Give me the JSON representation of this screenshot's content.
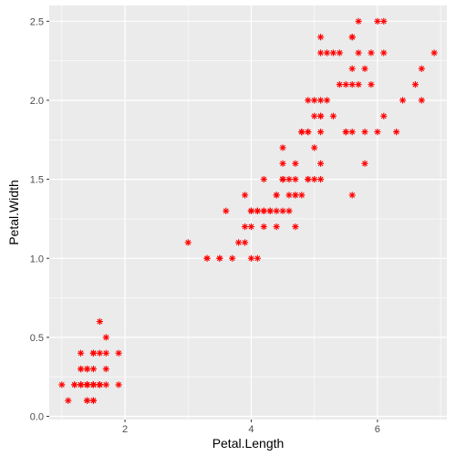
{
  "chart_data": {
    "type": "scatter",
    "title": "",
    "xlabel": "Petal.Length",
    "ylabel": "Petal.Width",
    "xlim": [
      0.8,
      7.1
    ],
    "ylim": [
      -0.02,
      2.6
    ],
    "x_ticks": [
      2,
      4,
      6
    ],
    "x_tick_labels": [
      "2",
      "4",
      "6"
    ],
    "y_ticks": [
      0.0,
      0.5,
      1.0,
      1.5,
      2.0,
      2.5
    ],
    "y_tick_labels": [
      "0.0",
      "0.5",
      "1.0",
      "1.5",
      "2.0",
      "2.5"
    ],
    "grid": true,
    "background": "#ebebeb",
    "gridline_color": "#ffffff",
    "marker": "asterisk",
    "marker_color": "#ff0000",
    "series": [
      {
        "points": [
          [
            1.4,
            0.2
          ],
          [
            1.4,
            0.2
          ],
          [
            1.3,
            0.2
          ],
          [
            1.5,
            0.2
          ],
          [
            1.4,
            0.2
          ],
          [
            1.7,
            0.4
          ],
          [
            1.4,
            0.3
          ],
          [
            1.5,
            0.2
          ],
          [
            1.4,
            0.2
          ],
          [
            1.5,
            0.1
          ],
          [
            1.5,
            0.2
          ],
          [
            1.6,
            0.2
          ],
          [
            1.4,
            0.1
          ],
          [
            1.1,
            0.1
          ],
          [
            1.2,
            0.2
          ],
          [
            1.5,
            0.4
          ],
          [
            1.3,
            0.4
          ],
          [
            1.4,
            0.3
          ],
          [
            1.7,
            0.3
          ],
          [
            1.5,
            0.3
          ],
          [
            1.7,
            0.2
          ],
          [
            1.5,
            0.4
          ],
          [
            1.0,
            0.2
          ],
          [
            1.7,
            0.5
          ],
          [
            1.9,
            0.2
          ],
          [
            1.6,
            0.2
          ],
          [
            1.6,
            0.4
          ],
          [
            1.5,
            0.2
          ],
          [
            1.4,
            0.2
          ],
          [
            1.6,
            0.2
          ],
          [
            1.6,
            0.2
          ],
          [
            1.5,
            0.4
          ],
          [
            1.5,
            0.1
          ],
          [
            1.4,
            0.2
          ],
          [
            1.5,
            0.2
          ],
          [
            1.2,
            0.2
          ],
          [
            1.3,
            0.2
          ],
          [
            1.4,
            0.1
          ],
          [
            1.3,
            0.2
          ],
          [
            1.5,
            0.2
          ],
          [
            1.3,
            0.3
          ],
          [
            1.3,
            0.3
          ],
          [
            1.3,
            0.2
          ],
          [
            1.6,
            0.6
          ],
          [
            1.9,
            0.4
          ],
          [
            1.4,
            0.3
          ],
          [
            1.6,
            0.2
          ],
          [
            1.4,
            0.2
          ],
          [
            1.5,
            0.2
          ],
          [
            1.4,
            0.2
          ],
          [
            4.7,
            1.4
          ],
          [
            4.5,
            1.5
          ],
          [
            4.9,
            1.5
          ],
          [
            4.0,
            1.3
          ],
          [
            4.6,
            1.5
          ],
          [
            4.5,
            1.3
          ],
          [
            4.7,
            1.6
          ],
          [
            3.3,
            1.0
          ],
          [
            4.6,
            1.3
          ],
          [
            3.9,
            1.4
          ],
          [
            3.5,
            1.0
          ],
          [
            4.2,
            1.5
          ],
          [
            4.0,
            1.0
          ],
          [
            4.7,
            1.4
          ],
          [
            3.6,
            1.3
          ],
          [
            4.4,
            1.4
          ],
          [
            4.5,
            1.5
          ],
          [
            4.1,
            1.0
          ],
          [
            4.5,
            1.5
          ],
          [
            3.9,
            1.1
          ],
          [
            4.8,
            1.8
          ],
          [
            4.0,
            1.3
          ],
          [
            4.9,
            1.5
          ],
          [
            4.7,
            1.2
          ],
          [
            4.3,
            1.3
          ],
          [
            4.4,
            1.4
          ],
          [
            4.8,
            1.4
          ],
          [
            5.0,
            1.7
          ],
          [
            4.5,
            1.5
          ],
          [
            3.5,
            1.0
          ],
          [
            3.8,
            1.1
          ],
          [
            3.7,
            1.0
          ],
          [
            3.9,
            1.2
          ],
          [
            5.1,
            1.6
          ],
          [
            4.5,
            1.5
          ],
          [
            4.5,
            1.6
          ],
          [
            4.7,
            1.5
          ],
          [
            4.4,
            1.3
          ],
          [
            4.1,
            1.3
          ],
          [
            4.0,
            1.3
          ],
          [
            4.4,
            1.2
          ],
          [
            4.6,
            1.4
          ],
          [
            4.0,
            1.2
          ],
          [
            3.3,
            1.0
          ],
          [
            4.2,
            1.3
          ],
          [
            4.2,
            1.2
          ],
          [
            4.2,
            1.3
          ],
          [
            4.3,
            1.3
          ],
          [
            3.0,
            1.1
          ],
          [
            4.1,
            1.3
          ],
          [
            6.0,
            2.5
          ],
          [
            5.1,
            1.9
          ],
          [
            5.9,
            2.1
          ],
          [
            5.6,
            1.8
          ],
          [
            5.8,
            2.2
          ],
          [
            6.6,
            2.1
          ],
          [
            4.5,
            1.7
          ],
          [
            6.3,
            1.8
          ],
          [
            5.8,
            1.8
          ],
          [
            6.1,
            2.5
          ],
          [
            5.1,
            2.0
          ],
          [
            5.3,
            1.9
          ],
          [
            5.5,
            2.1
          ],
          [
            5.0,
            2.0
          ],
          [
            5.1,
            2.4
          ],
          [
            5.3,
            2.3
          ],
          [
            5.5,
            1.8
          ],
          [
            6.7,
            2.2
          ],
          [
            6.9,
            2.3
          ],
          [
            5.0,
            1.5
          ],
          [
            5.7,
            2.3
          ],
          [
            4.9,
            2.0
          ],
          [
            6.7,
            2.0
          ],
          [
            4.9,
            1.8
          ],
          [
            5.7,
            2.1
          ],
          [
            6.0,
            1.8
          ],
          [
            4.8,
            1.8
          ],
          [
            4.9,
            1.8
          ],
          [
            5.6,
            2.1
          ],
          [
            5.8,
            1.6
          ],
          [
            6.1,
            1.9
          ],
          [
            6.4,
            2.0
          ],
          [
            5.6,
            2.2
          ],
          [
            5.1,
            1.5
          ],
          [
            5.6,
            1.4
          ],
          [
            6.1,
            2.3
          ],
          [
            5.6,
            2.4
          ],
          [
            5.5,
            1.8
          ],
          [
            4.8,
            1.8
          ],
          [
            5.4,
            2.1
          ],
          [
            5.6,
            2.4
          ],
          [
            5.1,
            2.3
          ],
          [
            5.1,
            1.9
          ],
          [
            5.9,
            2.3
          ],
          [
            5.7,
            2.5
          ],
          [
            5.2,
            2.3
          ],
          [
            5.0,
            1.9
          ],
          [
            5.2,
            2.0
          ],
          [
            5.4,
            2.3
          ],
          [
            5.1,
            1.8
          ]
        ]
      }
    ]
  }
}
